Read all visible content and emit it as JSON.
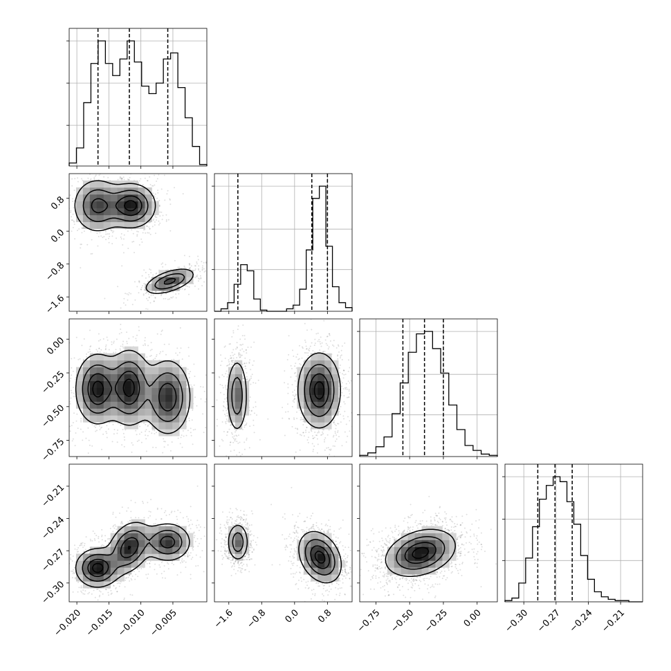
{
  "chart_data": {
    "type": "corner",
    "grid": true,
    "quantile_lines": [
      0.16,
      0.5,
      0.84
    ],
    "variables": [
      {
        "ticks": [
          -0.02,
          -0.015,
          -0.01,
          -0.005
        ],
        "tick_labels": [
          "−0.020",
          "−0.015",
          "−0.010",
          "−0.005"
        ],
        "range": [
          -0.0212,
          0.0003
        ]
      },
      {
        "ticks": [
          -1.6,
          -0.8,
          0.0,
          0.8
        ],
        "tick_labels": [
          "−1.6",
          "−0.8",
          "0.0",
          "0.8"
        ],
        "range": [
          -1.95,
          1.4
        ]
      },
      {
        "ticks": [
          -0.75,
          -0.5,
          -0.25,
          0.0
        ],
        "tick_labels": [
          "−0.75",
          "−0.50",
          "−0.25",
          "0.00"
        ],
        "range": [
          -0.87,
          0.15
        ]
      },
      {
        "ticks": [
          -0.3,
          -0.27,
          -0.24,
          -0.21
        ],
        "tick_labels": [
          "−0.30",
          "−0.27",
          "−0.24",
          "−0.21"
        ],
        "range": [
          -0.3175,
          -0.1895
        ]
      }
    ],
    "histograms": [
      {
        "var": 0,
        "quantiles": [
          -0.0167,
          -0.0118,
          -0.0058
        ],
        "counts": [
          2,
          12,
          42,
          68,
          83,
          68,
          60,
          71,
          83,
          69,
          53,
          48,
          55,
          71,
          75,
          52,
          32,
          13,
          1
        ]
      },
      {
        "var": 1,
        "quantiles": [
          -1.38,
          0.42,
          0.8
        ],
        "counts": [
          0,
          2,
          7,
          22,
          38,
          33,
          10,
          1,
          0,
          0,
          0,
          2,
          5,
          18,
          50,
          92,
          102,
          53,
          20,
          7,
          3
        ]
      },
      {
        "var": 2,
        "quantiles": [
          -0.55,
          -0.39,
          -0.25
        ],
        "counts": [
          1,
          3,
          8,
          16,
          35,
          60,
          85,
          100,
          102,
          88,
          68,
          42,
          22,
          9,
          5,
          2,
          1
        ]
      },
      {
        "var": 3,
        "quantiles": [
          -0.287,
          -0.271,
          -0.255
        ],
        "counts": [
          1,
          3,
          15,
          35,
          60,
          82,
          93,
          100,
          96,
          80,
          62,
          37,
          18,
          8,
          4,
          2,
          1,
          1,
          0,
          0
        ]
      }
    ],
    "pair_clusters": [
      {
        "x": 0,
        "y": 1,
        "clusters": [
          {
            "cx": -0.0168,
            "cy": 0.62,
            "sx": 0.0019,
            "sy": 0.33,
            "rho": 0.0,
            "w": 1.0
          },
          {
            "cx": -0.0115,
            "cy": 0.62,
            "sx": 0.0019,
            "sy": 0.27,
            "rho": 0.0,
            "w": 1.3
          },
          {
            "cx": -0.0055,
            "cy": -1.22,
            "sx": 0.002,
            "sy": 0.16,
            "rho": 0.55,
            "w": 1.0
          }
        ]
      },
      {
        "x": 0,
        "y": 2,
        "clusters": [
          {
            "cx": -0.0168,
            "cy": -0.37,
            "sx": 0.0017,
            "sy": 0.13,
            "rho": 0.0,
            "w": 1.0
          },
          {
            "cx": -0.0118,
            "cy": -0.36,
            "sx": 0.0017,
            "sy": 0.14,
            "rho": 0.0,
            "w": 1.0
          },
          {
            "cx": -0.0058,
            "cy": -0.43,
            "sx": 0.0018,
            "sy": 0.14,
            "rho": 0.0,
            "w": 0.9
          }
        ]
      },
      {
        "x": 1,
        "y": 2,
        "clusters": [
          {
            "cx": -1.4,
            "cy": -0.42,
            "sx": 0.13,
            "sy": 0.14,
            "rho": 0.0,
            "w": 1.0
          },
          {
            "cx": 0.6,
            "cy": -0.38,
            "sx": 0.26,
            "sy": 0.14,
            "rho": 0.0,
            "w": 1.6
          }
        ]
      },
      {
        "x": 0,
        "y": 3,
        "clusters": [
          {
            "cx": -0.0168,
            "cy": -0.286,
            "sx": 0.0017,
            "sy": 0.009,
            "rho": 0.0,
            "w": 1.1
          },
          {
            "cx": -0.0118,
            "cy": -0.267,
            "sx": 0.0017,
            "sy": 0.012,
            "rho": 0.3,
            "w": 1.0
          },
          {
            "cx": -0.0058,
            "cy": -0.262,
            "sx": 0.0018,
            "sy": 0.009,
            "rho": 0.0,
            "w": 0.9
          }
        ]
      },
      {
        "x": 1,
        "y": 3,
        "clusters": [
          {
            "cx": -1.38,
            "cy": -0.262,
            "sx": 0.13,
            "sy": 0.009,
            "rho": 0.0,
            "w": 1.0
          },
          {
            "cx": 0.62,
            "cy": -0.276,
            "sx": 0.26,
            "sy": 0.012,
            "rho": -0.3,
            "w": 1.6
          }
        ]
      },
      {
        "x": 2,
        "y": 3,
        "clusters": [
          {
            "cx": -0.42,
            "cy": -0.272,
            "sx": 0.13,
            "sy": 0.011,
            "rho": 0.3,
            "w": 1.0
          }
        ]
      }
    ]
  }
}
